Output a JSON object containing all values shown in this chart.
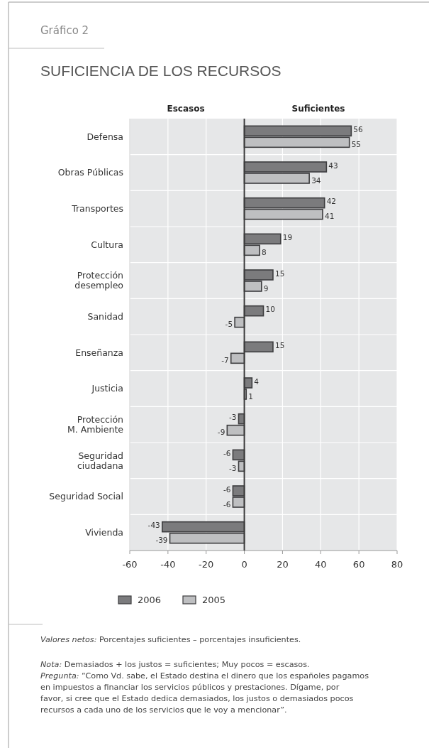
{
  "chart_data": {
    "type": "bar",
    "orientation": "horizontal",
    "title": "SUFICIENCIA DE LOS RECURSOS",
    "categories": [
      "Defensa",
      "Obras Públicas",
      "Transportes",
      "Cultura",
      "Protección\ndesempleo",
      "Sanidad",
      "Enseñanza",
      "Justicia",
      "Protección\nM. Ambiente",
      "Seguridad\nciudadana",
      "Seguridad Social",
      "Vivienda"
    ],
    "series": [
      {
        "name": "2006",
        "color": "#7b7b7d",
        "values": [
          56,
          43,
          42,
          19,
          15,
          10,
          15,
          4,
          -3,
          -6,
          -6,
          -43
        ]
      },
      {
        "name": "2005",
        "color": "#bebfc1",
        "values": [
          55,
          34,
          41,
          8,
          9,
          -5,
          -7,
          1,
          -9,
          -3,
          -6,
          -39
        ]
      }
    ],
    "xlim": [
      -60,
      80
    ],
    "xticks": [
      -60,
      -40,
      -20,
      0,
      20,
      40,
      60,
      80
    ],
    "grid": true,
    "legend": "bottom",
    "data_labels": true,
    "annotations": [
      "Gráfico 2",
      "Escasos",
      "Suficientes",
      "Valores netos: Porcentajes suficientes – porcentajes insuficientes.",
      "Nota: Demasiados + los justos = suficientes; Muy pocos = escasos.",
      "Pregunta: “Como Vd. sabe, el Estado destina el dinero que los españoles pagamos en impuestos a financiar los servicios públicos y prestaciones. Dígame, por favor, si cree que el Estado dedica demasiados, los justos o demasiados pocos recursos a cada uno de los servicios que le voy a mencionar”."
    ]
  }
}
